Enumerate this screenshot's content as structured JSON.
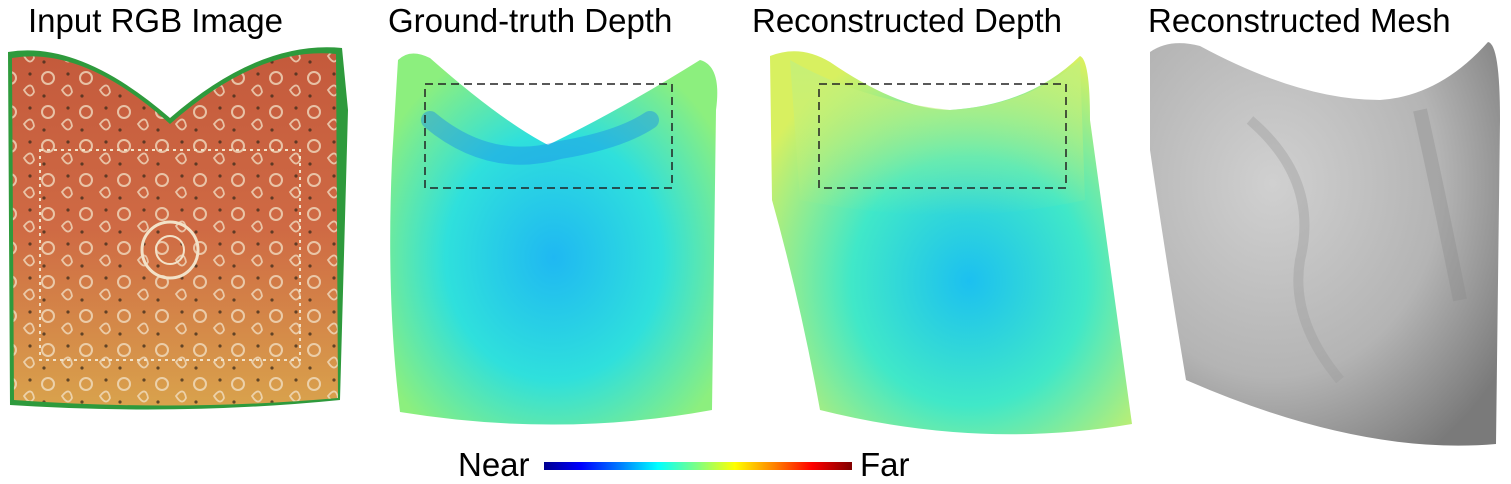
{
  "panels": [
    {
      "title": "Input RGB Image"
    },
    {
      "title": "Ground-truth Depth"
    },
    {
      "title": "Reconstructed Depth"
    },
    {
      "title": "Reconstructed Mesh"
    }
  ],
  "colorbar": {
    "min_label": "Near",
    "max_label": "Far",
    "colormap": [
      "#00008f",
      "#0000ff",
      "#0080ff",
      "#00ffff",
      "#80ff80",
      "#ffff00",
      "#ff8000",
      "#ff0000",
      "#800000"
    ]
  },
  "colors": {
    "cloth_red": "#c9613f",
    "cloth_yellow": "#d9a24c",
    "depth_cyan": "#22d2f0",
    "depth_green": "#9ef07a",
    "mesh_gray": "#bdbdbd"
  }
}
